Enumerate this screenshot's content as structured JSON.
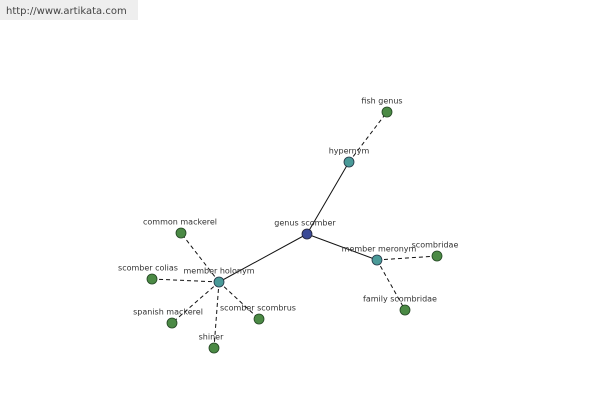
{
  "header": {
    "url": "http://www.artikata.com"
  },
  "nodes": [
    {
      "label": "genus scomber"
    },
    {
      "label": "hypernym"
    },
    {
      "label": "fish genus"
    },
    {
      "label": "member meronym"
    },
    {
      "label": "scombridae"
    },
    {
      "label": "family scombridae"
    },
    {
      "label": "member holonym"
    },
    {
      "label": "common mackerel"
    },
    {
      "label": "scomber colias"
    },
    {
      "label": "spanish mackerel"
    },
    {
      "label": "shiner"
    },
    {
      "label": "scomber scombrus"
    }
  ]
}
